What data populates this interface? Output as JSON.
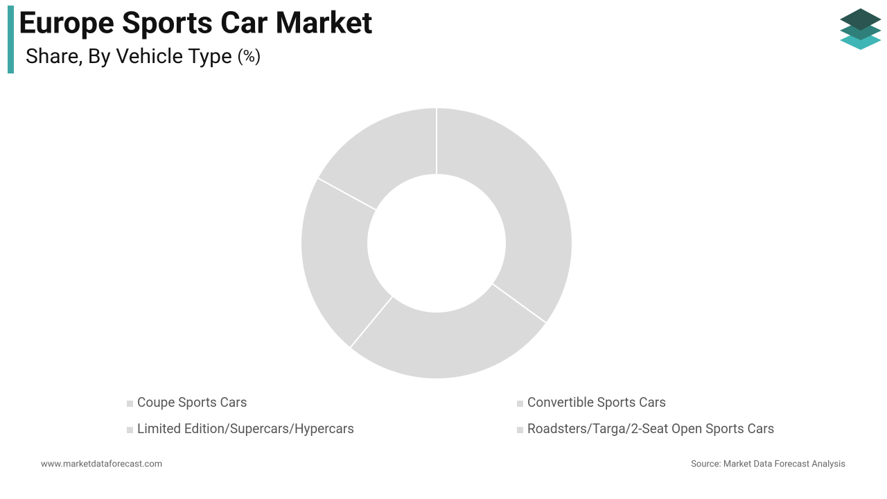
{
  "chart_data": {
    "type": "donut",
    "title": "Europe Sports Car Market",
    "subtitle": "Share, By Vehicle Type",
    "unit": "(%)",
    "categories": [
      "Coupe Sports Cars",
      "Convertible Sports Cars",
      "Limited Edition/Supercars/Hypercars",
      "Roadsters/Targa/2-Seat Open Sports Cars"
    ],
    "values": [
      35,
      26,
      22,
      17
    ],
    "color": "#dadada",
    "website": "www.marketdataforecast.com",
    "source": "Source: Market Data Forecast Analysis"
  }
}
